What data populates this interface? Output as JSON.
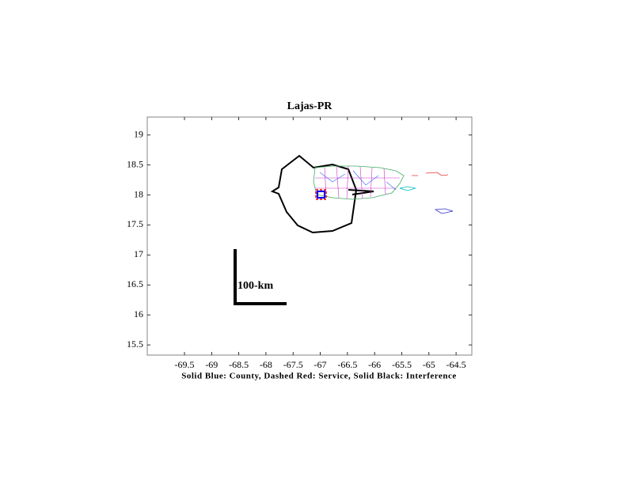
{
  "chart_data": {
    "type": "map",
    "title": "Lajas-PR",
    "xlabel": "Solid Blue: County, Dashed Red: Service, Solid Black: Interference",
    "scale_label": "100-km",
    "xlim": [
      -70.185,
      -64.21
    ],
    "ylim": [
      15.33,
      19.3
    ],
    "xticks": [
      -69.5,
      -69,
      -68.5,
      -68,
      -67.5,
      -67,
      -66.5,
      -66,
      -65.5,
      -65,
      -64.5
    ],
    "yticks": [
      15.5,
      16,
      16.5,
      17,
      17.5,
      18,
      18.5,
      19
    ],
    "grid": false
  }
}
